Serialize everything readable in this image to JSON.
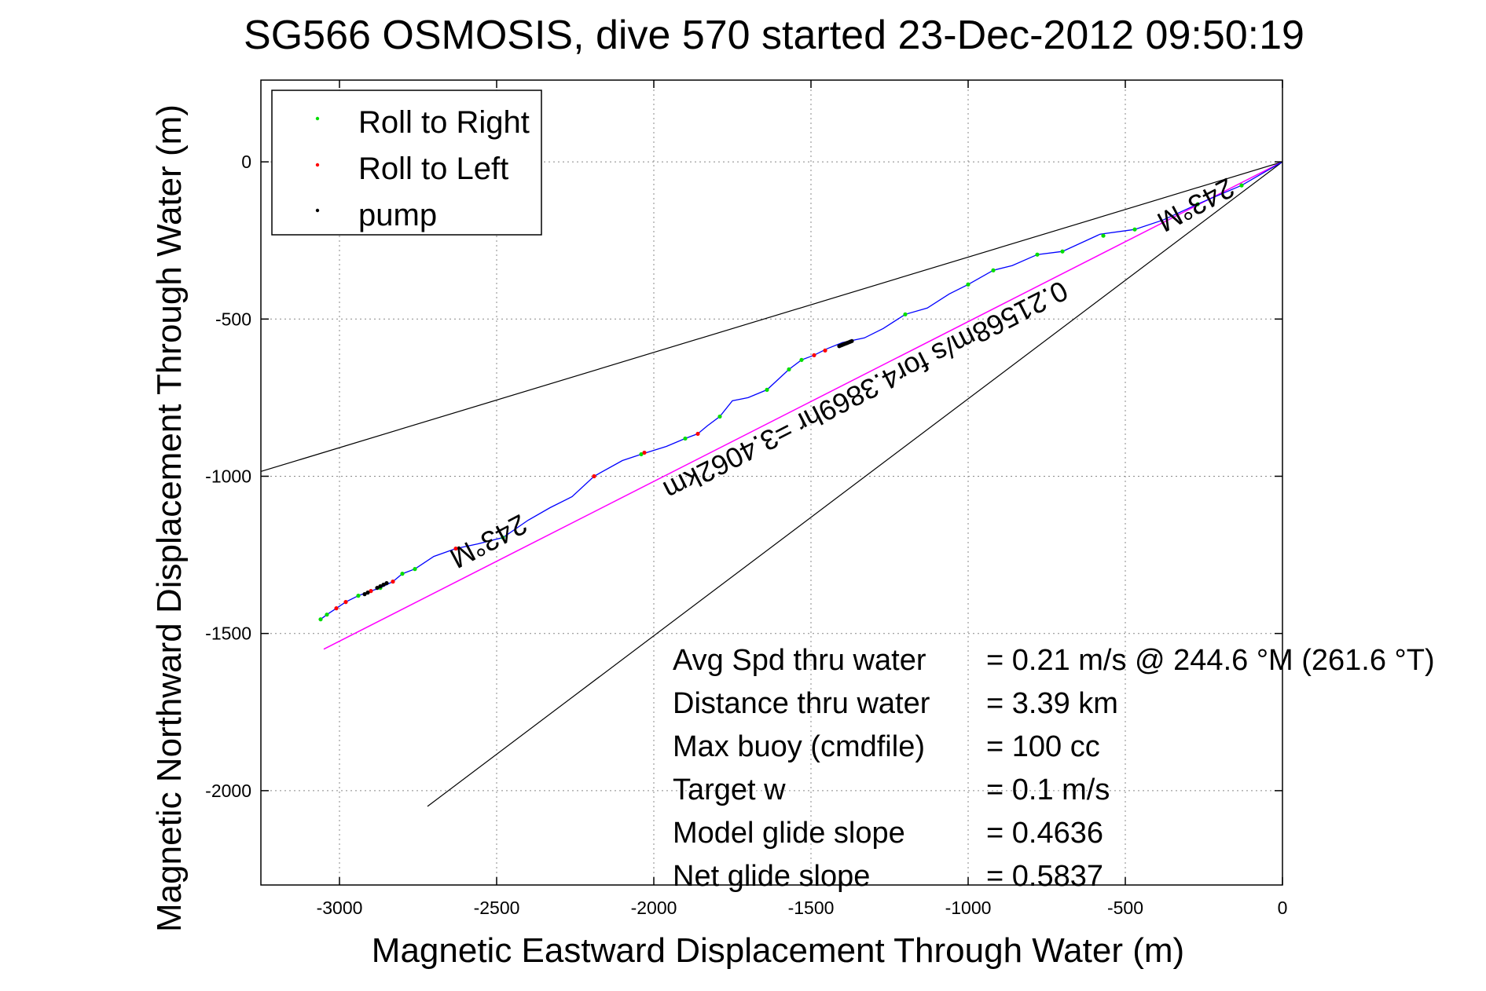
{
  "chart_data": {
    "type": "scatter",
    "title": "SG566 OSMOSIS, dive 570 started 23-Dec-2012 09:50:19",
    "xlabel": "Magnetic Eastward Displacement Through Water (m)",
    "ylabel": "Magnetic Northward Displacement Through Water (m)",
    "xlim": [
      -3250,
      0
    ],
    "ylim": [
      -2300,
      260
    ],
    "xticks": [
      -3000,
      -2500,
      -2000,
      -1500,
      -1000,
      -500,
      0
    ],
    "yticks": [
      0,
      -500,
      -1000,
      -1500,
      -2000
    ],
    "grid": true,
    "legend_position": "top-left",
    "legend": [
      "Roll to Right",
      "Roll to Left",
      "pump"
    ],
    "colors": {
      "track": "#0000ff",
      "roll_right": "#00dd00",
      "roll_left": "#ff0000",
      "pump": "#000000",
      "heading_line": "#ff00ff",
      "cone": "#000000",
      "grid": "#888888"
    },
    "track": {
      "x": [
        0,
        -130,
        -260,
        -380,
        -470,
        -580,
        -700,
        -780,
        -860,
        -920,
        -1000,
        -1060,
        -1130,
        -1200,
        -1270,
        -1330,
        -1400,
        -1450,
        -1490,
        -1530,
        -1570,
        -1640,
        -1700,
        -1750,
        -1790,
        -1830,
        -1860,
        -1900,
        -1960,
        -2040,
        -2100,
        -2190,
        -2260,
        -2330,
        -2400,
        -2480,
        -2560,
        -2630,
        -2700,
        -2760,
        -2800,
        -2830,
        -2870,
        -2900,
        -2940,
        -2980,
        -3010,
        -3040,
        -3060
      ],
      "y": [
        0,
        -75,
        -130,
        -185,
        -215,
        -230,
        -285,
        -295,
        -330,
        -345,
        -390,
        -420,
        -465,
        -485,
        -530,
        -560,
        -575,
        -595,
        -615,
        -630,
        -660,
        -725,
        -750,
        -760,
        -810,
        -840,
        -865,
        -880,
        -905,
        -930,
        -950,
        -1000,
        -1065,
        -1100,
        -1140,
        -1195,
        -1215,
        -1230,
        -1255,
        -1295,
        -1310,
        -1335,
        -1355,
        -1365,
        -1380,
        -1400,
        -1420,
        -1440,
        -1455
      ]
    },
    "roll_right": {
      "x": [
        -130,
        -270,
        -470,
        -570,
        -700,
        -780,
        -920,
        -1000,
        -1200,
        -1530,
        -1570,
        -1640,
        -1790,
        -1900,
        -2040,
        -2480,
        -2760,
        -2800,
        -2870,
        -2940,
        -3040,
        -3060
      ],
      "y": [
        -75,
        -135,
        -215,
        -235,
        -285,
        -295,
        -345,
        -390,
        -485,
        -630,
        -660,
        -725,
        -810,
        -880,
        -930,
        -1195,
        -1295,
        -1310,
        -1355,
        -1380,
        -1440,
        -1455
      ]
    },
    "roll_left": {
      "x": [
        -1455,
        -1490,
        -1860,
        -2030,
        -2190,
        -2630,
        -2830,
        -2900,
        -2980,
        -3010
      ],
      "y": [
        -600,
        -615,
        -865,
        -925,
        -1000,
        -1230,
        -1335,
        -1365,
        -1400,
        -1420
      ]
    },
    "pump": {
      "x": [
        -1370,
        -1375,
        -1380,
        -1385,
        -1390,
        -1395,
        -1400,
        -1405,
        -1410,
        -2850,
        -2860,
        -2870,
        -2880,
        -2910,
        -2920
      ],
      "y": [
        -570,
        -572,
        -574,
        -576,
        -578,
        -580,
        -582,
        -584,
        -586,
        -1340,
        -1345,
        -1350,
        -1355,
        -1370,
        -1375
      ]
    },
    "heading_line": {
      "x": [
        0,
        -3050
      ],
      "y": [
        0,
        -1550
      ]
    },
    "cone_lines": [
      {
        "x": [
          0,
          -3300
        ],
        "y": [
          0,
          -1000
        ]
      },
      {
        "x": [
          0,
          -2720
        ],
        "y": [
          0,
          -2050
        ]
      }
    ],
    "annotations": [
      {
        "text": "243°M",
        "x": -290,
        "y": -110,
        "rotate": 152
      },
      {
        "text": "0.21568m/s for4.3869hr =3.4062km",
        "x": -1340,
        "y": -700,
        "rotate": 153
      },
      {
        "text": "243°M",
        "x": -2540,
        "y": -1180,
        "rotate": 152
      }
    ],
    "stats": [
      {
        "label": "Avg Spd thru water",
        "value": "=  0.21 m/s @ 244.6 °M (261.6 °T)"
      },
      {
        "label": "Distance thru water",
        "value": "=  3.39 km"
      },
      {
        "label": "Max buoy (cmdfile)",
        "value": "= 100 cc"
      },
      {
        "label": "Target w",
        "value": "= 0.1 m/s"
      },
      {
        "label": "Model glide slope",
        "value": "= 0.4636"
      },
      {
        "label": "Net glide slope",
        "value": "= 0.5837"
      }
    ]
  }
}
